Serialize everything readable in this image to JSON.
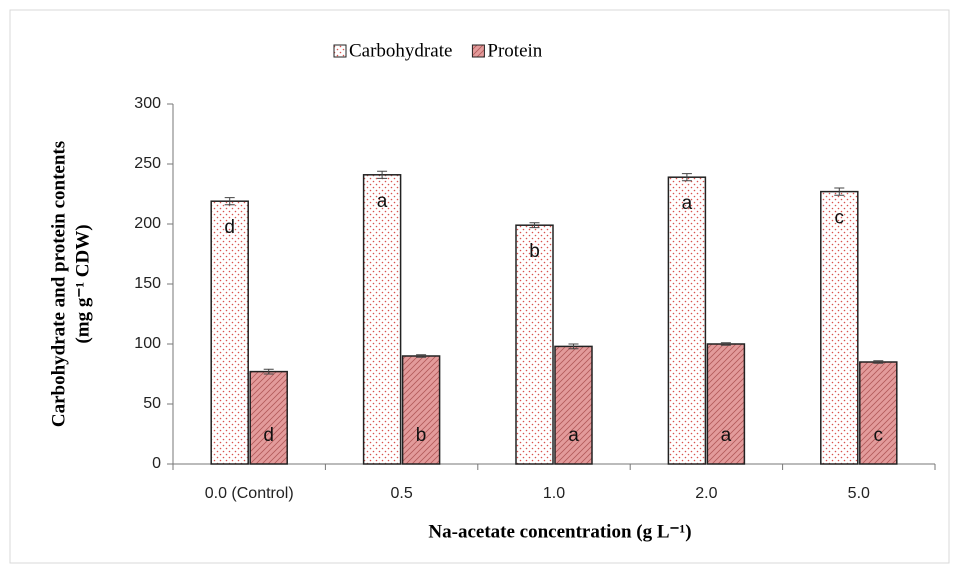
{
  "chart_data": {
    "type": "bar",
    "xlabel": "Na-acetate concentration (g L⁻¹)",
    "ylabel": [
      "Carbohydrate  and protein contents",
      "(mg g⁻¹ CDW)"
    ],
    "categories": [
      "0.0 (Control)",
      "0.5",
      "1.0",
      "2.0",
      "5.0"
    ],
    "series": [
      {
        "name": "Carbohydrate",
        "color": "#d9534f",
        "values": [
          219,
          241,
          199,
          239,
          227
        ],
        "errors": [
          3,
          3,
          2,
          3,
          3
        ],
        "letters": [
          "d",
          "a",
          "b",
          "a",
          "c"
        ]
      },
      {
        "name": "Protein",
        "color": "#e39b9b",
        "values": [
          77,
          90,
          98,
          100,
          85
        ],
        "errors": [
          2,
          1,
          2,
          1,
          1
        ],
        "letters": [
          "d",
          "b",
          "a",
          "a",
          "c"
        ]
      }
    ],
    "ylim": [
      0,
      300
    ],
    "yticks": [
      0,
      50,
      100,
      150,
      200,
      250,
      300
    ],
    "legend": "top"
  }
}
